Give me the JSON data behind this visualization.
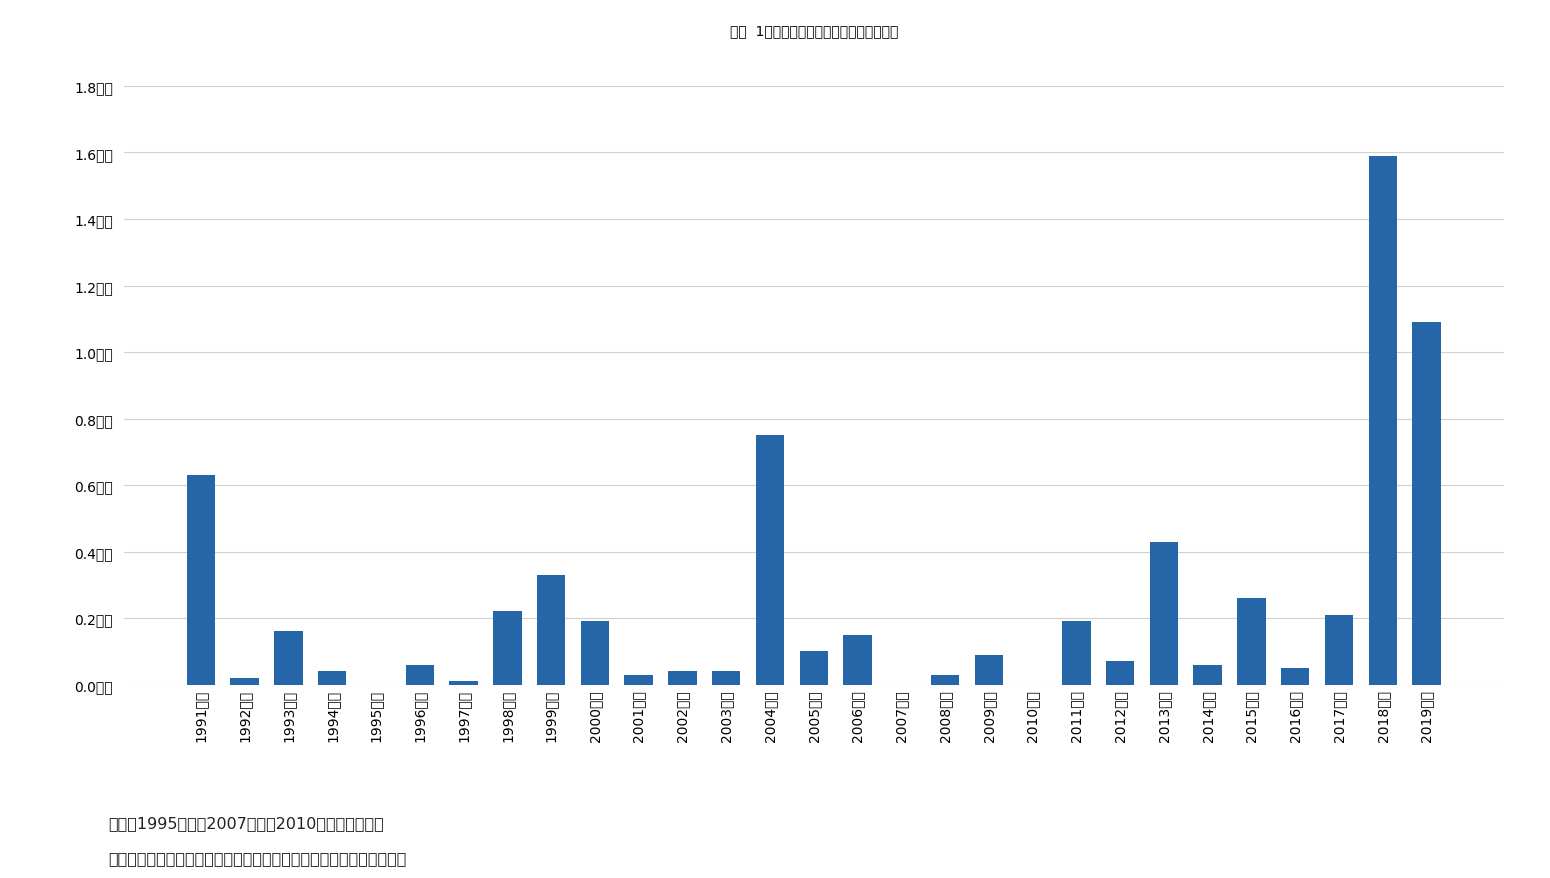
{
  "title": "図表  1：自然災害による支払保険金の推移",
  "categories": [
    "1991年度",
    "1992年度",
    "1993年度",
    "1994年度",
    "1995年度",
    "1996年度",
    "1997年度",
    "1998年度",
    "1999年度",
    "2000年度",
    "2001年度",
    "2002年度",
    "2003年度",
    "2004年度",
    "2005年度",
    "2006年度",
    "2007年度",
    "2008年度",
    "2009年度",
    "2010年度",
    "2011年度",
    "2012年度",
    "2013年度",
    "2014年度",
    "2015年度",
    "2016年度",
    "2017年度",
    "2018年度",
    "2019年度"
  ],
  "values": [
    0.63,
    0.02,
    0.16,
    0.04,
    0.0,
    0.06,
    0.01,
    0.22,
    0.33,
    0.19,
    0.03,
    0.04,
    0.04,
    0.75,
    0.1,
    0.15,
    0.0,
    0.03,
    0.09,
    0.0,
    0.19,
    0.07,
    0.43,
    0.06,
    0.26,
    0.05,
    0.21,
    1.59,
    1.09
  ],
  "no_data_years": [
    4,
    16,
    19
  ],
  "bar_color": "#2566a8",
  "background_color": "#ffffff",
  "ytick_labels": [
    "0.0兆円",
    "0.2兆円",
    "0.4兆円",
    "0.6兆円",
    "0.8兆円",
    "1.0兆円",
    "1.2兆円",
    "1.4兆円",
    "1.6兆円",
    "1.8兆円"
  ],
  "ytick_values": [
    0.0,
    0.2,
    0.4,
    0.6,
    0.8,
    1.0,
    1.2,
    1.4,
    1.6,
    1.8
  ],
  "ylim": [
    0,
    1.85
  ],
  "note_line1": "（注）1995年度、2007年度、2010年度は調査なし",
  "note_line2": "（出所）日本損害保険協会のデータをもとにニッセイ基礎研究所作成"
}
